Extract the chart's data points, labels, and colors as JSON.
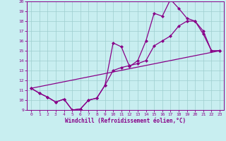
{
  "xlabel": "Windchill (Refroidissement éolien,°C)",
  "xlim": [
    -0.5,
    23.5
  ],
  "ylim": [
    9,
    20
  ],
  "xticks": [
    0,
    1,
    2,
    3,
    4,
    5,
    6,
    7,
    8,
    9,
    10,
    11,
    12,
    13,
    14,
    15,
    16,
    17,
    18,
    19,
    20,
    21,
    22,
    23
  ],
  "yticks": [
    9,
    10,
    11,
    12,
    13,
    14,
    15,
    16,
    17,
    18,
    19,
    20
  ],
  "background_color": "#c8eef0",
  "line_color": "#880088",
  "grid_color": "#9ecece",
  "line1_x": [
    0,
    1,
    2,
    3,
    4,
    5,
    6,
    7,
    8,
    9,
    10,
    11,
    12,
    13,
    14,
    15,
    16,
    17,
    18,
    19,
    20,
    21,
    22,
    23
  ],
  "line1_y": [
    11.2,
    10.7,
    10.3,
    9.8,
    10.1,
    9.0,
    9.1,
    10.0,
    10.2,
    11.5,
    15.8,
    15.4,
    13.4,
    14.0,
    16.0,
    18.8,
    18.5,
    20.2,
    19.3,
    18.3,
    18.0,
    16.7,
    15.0,
    15.0
  ],
  "line2_x": [
    0,
    1,
    2,
    3,
    4,
    5,
    6,
    7,
    8,
    9,
    10,
    11,
    12,
    13,
    14,
    15,
    16,
    17,
    18,
    19,
    20,
    21,
    22,
    23
  ],
  "line2_y": [
    11.2,
    10.7,
    10.3,
    9.8,
    10.1,
    9.0,
    9.1,
    10.0,
    10.2,
    11.5,
    13.0,
    13.3,
    13.5,
    13.7,
    14.0,
    15.5,
    16.0,
    16.5,
    17.5,
    18.0,
    18.0,
    17.0,
    15.0,
    15.0
  ],
  "line3_x": [
    0,
    23
  ],
  "line3_y": [
    11.2,
    15.0
  ],
  "markersize": 2.5,
  "linewidth": 0.9
}
